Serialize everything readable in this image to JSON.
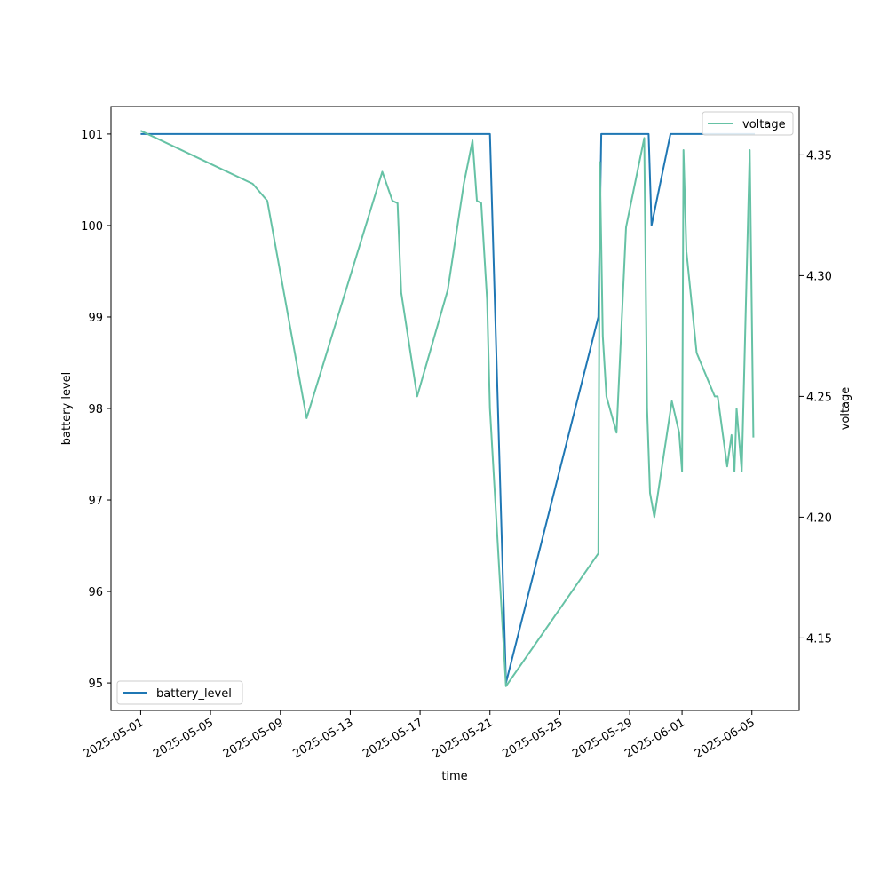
{
  "chart_data": {
    "type": "line",
    "xlabel": "time",
    "ylabel_left": "battery level",
    "ylabel_right": "voltage",
    "x_ticks": [
      "2025-05-01",
      "2025-05-05",
      "2025-05-09",
      "2025-05-13",
      "2025-05-17",
      "2025-05-21",
      "2025-05-25",
      "2025-05-29",
      "2025-06-01",
      "2025-06-05"
    ],
    "xlim": [
      "2025-04-29T07:12",
      "2025-06-07T17:00"
    ],
    "ylim_left": [
      94.7,
      101.3
    ],
    "ylim_right": [
      4.12,
      4.37
    ],
    "y_ticks_left": [
      95,
      96,
      97,
      98,
      99,
      100,
      101
    ],
    "y_ticks_right": [
      4.15,
      4.2,
      4.25,
      4.3,
      4.35
    ],
    "grid": false,
    "series": [
      {
        "name": "battery_level",
        "axis": "left",
        "color": "#1f77b4",
        "legend": "bottom-left",
        "x": [
          "2025-05-01T00:00",
          "2025-05-21T00:00",
          "2025-05-21T22:00",
          "2025-05-27T05:00",
          "2025-05-27T09:00",
          "2025-05-30T02:00",
          "2025-05-30T06:00",
          "2025-05-31T08:00",
          "2025-06-05T04:00"
        ],
        "y": [
          101,
          101,
          95,
          99,
          101,
          101,
          100,
          101,
          101
        ]
      },
      {
        "name": "voltage",
        "axis": "right",
        "color": "#66c2a5",
        "legend": "top-right",
        "x": [
          "2025-05-01T00:00",
          "2025-05-07T10:00",
          "2025-05-08T06:00",
          "2025-05-10T12:00",
          "2025-05-14T20:00",
          "2025-05-15T10:00",
          "2025-05-15T17:00",
          "2025-05-15T22:00",
          "2025-05-16T20:00",
          "2025-05-18T14:00",
          "2025-05-19T12:00",
          "2025-05-20T00:00",
          "2025-05-20T06:00",
          "2025-05-20T12:00",
          "2025-05-20T20:00",
          "2025-05-21T00:00",
          "2025-05-21T22:00",
          "2025-05-27T05:00",
          "2025-05-27T07:00",
          "2025-05-27T11:00",
          "2025-05-27T16:00",
          "2025-05-28T06:00",
          "2025-05-28T19:00",
          "2025-05-29T20:00",
          "2025-05-30T00:00",
          "2025-05-30T04:00",
          "2025-05-30T10:00",
          "2025-05-31T10:00",
          "2025-05-31T20:00",
          "2025-06-01T00:00",
          "2025-06-01T02:00",
          "2025-06-01T06:00",
          "2025-06-01T20:00",
          "2025-06-02T21:00",
          "2025-06-03T01:00",
          "2025-06-03T14:00",
          "2025-06-03T20:00",
          "2025-06-04T00:00",
          "2025-06-04T03:00",
          "2025-06-04T10:00",
          "2025-06-04T21:00",
          "2025-06-05T02:00"
        ],
        "y": [
          4.36,
          4.338,
          4.331,
          4.241,
          4.343,
          4.331,
          4.33,
          4.293,
          4.25,
          4.294,
          4.338,
          4.356,
          4.331,
          4.33,
          4.29,
          4.245,
          4.13,
          4.185,
          4.347,
          4.275,
          4.25,
          4.235,
          4.32,
          4.357,
          4.245,
          4.21,
          4.2,
          4.248,
          4.235,
          4.219,
          4.352,
          4.31,
          4.268,
          4.25,
          4.25,
          4.221,
          4.234,
          4.219,
          4.245,
          4.219,
          4.352,
          4.233
        ]
      }
    ]
  }
}
